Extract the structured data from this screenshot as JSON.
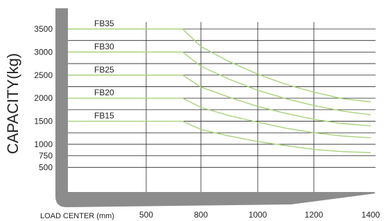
{
  "chart_data": {
    "type": "line",
    "title": "",
    "xlabel": "LOAD CENTER (mm)",
    "ylabel": "CAPACITY(kg)",
    "x_ticks": [
      500,
      800,
      1000,
      1200,
      1400
    ],
    "y_ticks": [
      500,
      750,
      1000,
      1250,
      1500,
      1750,
      2000,
      2250,
      2500,
      2750,
      3000,
      3250,
      3500
    ],
    "y_tick_labels": [
      {
        "value": 500,
        "label": "500"
      },
      {
        "value": 750,
        "label": "750"
      },
      {
        "value": 1000,
        "label": "1000"
      },
      {
        "value": 1500,
        "label": "1500"
      },
      {
        "value": 2000,
        "label": "2000"
      },
      {
        "value": 2500,
        "label": "2500"
      },
      {
        "value": 3000,
        "label": "3000"
      },
      {
        "value": 3500,
        "label": "3500"
      }
    ],
    "xlim": [
      500,
      1400
    ],
    "ylim": [
      250,
      3500
    ],
    "grid": true,
    "series": [
      {
        "name": "FB35",
        "x": [
          500,
          700,
          800,
          900,
          1000,
          1100,
          1200,
          1300,
          1400
        ],
        "y": [
          3500,
          3500,
          3120,
          2790,
          2520,
          2300,
          2130,
          1990,
          1920
        ]
      },
      {
        "name": "FB30",
        "x": [
          500,
          700,
          800,
          900,
          1000,
          1100,
          1200,
          1300,
          1400
        ],
        "y": [
          3000,
          3000,
          2690,
          2410,
          2170,
          1990,
          1840,
          1720,
          1640
        ]
      },
      {
        "name": "FB25",
        "x": [
          500,
          700,
          800,
          900,
          1000,
          1100,
          1200,
          1300,
          1400
        ],
        "y": [
          2500,
          2500,
          2240,
          2020,
          1820,
          1670,
          1540,
          1450,
          1400
        ]
      },
      {
        "name": "FB20",
        "x": [
          500,
          700,
          800,
          900,
          1000,
          1100,
          1200,
          1300,
          1400
        ],
        "y": [
          2000,
          2000,
          1800,
          1620,
          1480,
          1350,
          1250,
          1180,
          1140
        ]
      },
      {
        "name": "FB15",
        "x": [
          500,
          700,
          800,
          900,
          1000,
          1100,
          1200,
          1300,
          1400
        ],
        "y": [
          1500,
          1500,
          1320,
          1180,
          1060,
          970,
          890,
          840,
          820
        ]
      }
    ],
    "colors": {
      "series_line": "#a8d27a",
      "grid": "#222222",
      "frame": "#8c8c8c",
      "text": "#222222"
    }
  }
}
